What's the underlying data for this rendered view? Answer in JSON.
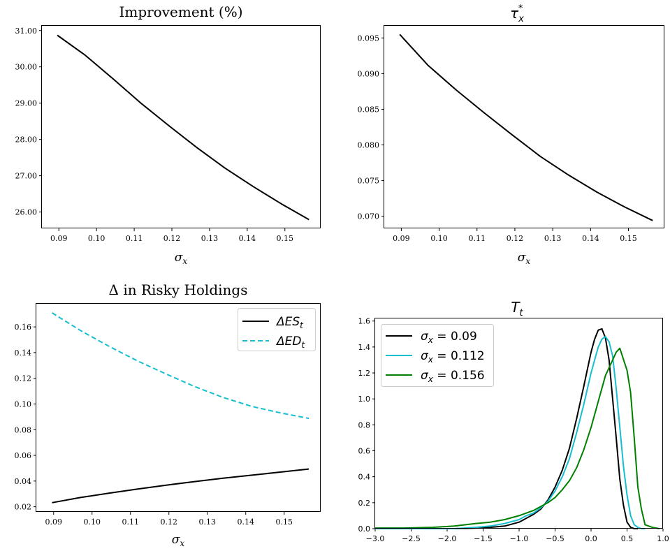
{
  "chart_data": [
    {
      "type": "line",
      "title": "Improvement (%)",
      "xlabel": "σ_x",
      "ylabel": "",
      "xlim": [
        0.0855,
        0.1595
      ],
      "ylim": [
        25.55,
        31.13
      ],
      "xticks": [
        0.09,
        0.1,
        0.11,
        0.12,
        0.13,
        0.14,
        0.15
      ],
      "xtick_labels": [
        "0.09",
        "0.10",
        "0.11",
        "0.12",
        "0.13",
        "0.14",
        "0.15"
      ],
      "yticks": [
        26,
        27,
        28,
        29,
        30,
        31
      ],
      "ytick_labels": [
        "26.00",
        "27.00",
        "28.00",
        "29.00",
        "30.00",
        "31.00"
      ],
      "grid": false,
      "series": [
        {
          "color": "#000000",
          "dash": "",
          "x": [
            0.0896,
            0.097,
            0.1045,
            0.1119,
            0.1193,
            0.1267,
            0.1341,
            0.1416,
            0.149,
            0.1564
          ],
          "y": [
            30.87,
            30.32,
            29.66,
            28.99,
            28.37,
            27.77,
            27.21,
            26.7,
            26.23,
            25.79
          ]
        }
      ]
    },
    {
      "type": "line",
      "title": "τ_x^*",
      "xlabel": "σ_x",
      "ylabel": "",
      "xlim": [
        0.0855,
        0.1595
      ],
      "ylim": [
        0.0683,
        0.0967
      ],
      "xticks": [
        0.09,
        0.1,
        0.11,
        0.12,
        0.13,
        0.14,
        0.15
      ],
      "xtick_labels": [
        "0.09",
        "0.10",
        "0.11",
        "0.12",
        "0.13",
        "0.14",
        "0.15"
      ],
      "yticks": [
        0.07,
        0.075,
        0.08,
        0.085,
        0.09,
        0.095
      ],
      "ytick_labels": [
        "0.070",
        "0.075",
        "0.080",
        "0.085",
        "0.090",
        "0.095"
      ],
      "grid": false,
      "series": [
        {
          "color": "#000000",
          "dash": "",
          "x": [
            0.0896,
            0.097,
            0.1045,
            0.1119,
            0.1193,
            0.1267,
            0.1341,
            0.1416,
            0.149,
            0.1564
          ],
          "y": [
            0.0955,
            0.0912,
            0.0877,
            0.0845,
            0.0814,
            0.0784,
            0.0758,
            0.0734,
            0.0713,
            0.0694
          ]
        }
      ]
    },
    {
      "type": "line",
      "title": "Δ in Risky Holdings",
      "xlabel": "σ_x",
      "ylabel": "",
      "xlim": [
        0.0855,
        0.1595
      ],
      "ylim": [
        0.016,
        0.178
      ],
      "xticks": [
        0.09,
        0.1,
        0.11,
        0.12,
        0.13,
        0.14,
        0.15
      ],
      "xtick_labels": [
        "0.09",
        "0.10",
        "0.11",
        "0.12",
        "0.13",
        "0.14",
        "0.15"
      ],
      "yticks": [
        0.02,
        0.04,
        0.06,
        0.08,
        0.1,
        0.12,
        0.14,
        0.16
      ],
      "ytick_labels": [
        "0.02",
        "0.04",
        "0.06",
        "0.08",
        "0.10",
        "0.12",
        "0.14",
        "0.16"
      ],
      "grid": false,
      "legend_position": "top-right",
      "series": [
        {
          "name": "ΔES_t",
          "color": "#000000",
          "dash": "",
          "x": [
            0.0896,
            0.097,
            0.1045,
            0.1119,
            0.1193,
            0.1267,
            0.1341,
            0.1416,
            0.149,
            0.1564
          ],
          "y": [
            0.0232,
            0.0272,
            0.0306,
            0.0338,
            0.0368,
            0.0396,
            0.0422,
            0.0446,
            0.047,
            0.0494
          ]
        },
        {
          "name": "ΔED_t",
          "color": "#17becf",
          "dash": "7,4",
          "x": [
            0.0896,
            0.097,
            0.1045,
            0.1119,
            0.1193,
            0.1267,
            0.1341,
            0.1416,
            0.149,
            0.1564
          ],
          "y": [
            0.171,
            0.1572,
            0.1448,
            0.1334,
            0.1233,
            0.1136,
            0.1051,
            0.0981,
            0.0931,
            0.0888
          ]
        }
      ]
    },
    {
      "type": "line",
      "title": "T_t",
      "xlabel": "",
      "ylabel": "",
      "xlim": [
        -3.0,
        1.0
      ],
      "ylim": [
        0.0,
        1.62
      ],
      "xticks": [
        -3.0,
        -2.5,
        -2.0,
        -1.5,
        -1.0,
        -0.5,
        0.0,
        0.5,
        1.0
      ],
      "xtick_labels": [
        "−3.0",
        "−2.5",
        "−2.0",
        "−1.5",
        "−1.0",
        "−0.5",
        "0.0",
        "0.5",
        "1.0"
      ],
      "yticks": [
        0.0,
        0.2,
        0.4,
        0.6,
        0.8,
        1.0,
        1.2,
        1.4,
        1.6
      ],
      "ytick_labels": [
        "0.0",
        "0.2",
        "0.4",
        "0.6",
        "0.8",
        "1.0",
        "1.2",
        "1.4",
        "1.6"
      ],
      "grid": false,
      "legend_position": "top-left",
      "series": [
        {
          "name": "σ_x = 0.09",
          "color": "#000000",
          "dash": "",
          "x": [
            -3.0,
            -2.6,
            -2.2,
            -1.9,
            -1.6,
            -1.4,
            -1.2,
            -1.0,
            -0.9,
            -0.8,
            -0.7,
            -0.6,
            -0.5,
            -0.4,
            -0.3,
            -0.2,
            -0.1,
            0.0,
            0.05,
            0.1,
            0.15,
            0.2,
            0.25,
            0.3,
            0.35,
            0.4,
            0.45,
            0.5,
            0.55,
            0.6,
            0.65
          ],
          "y": [
            0.0,
            0.0,
            0.0,
            0.0,
            0.005,
            0.01,
            0.02,
            0.05,
            0.08,
            0.11,
            0.15,
            0.22,
            0.32,
            0.45,
            0.62,
            0.85,
            1.1,
            1.36,
            1.46,
            1.53,
            1.54,
            1.47,
            1.3,
            1.0,
            0.7,
            0.38,
            0.18,
            0.05,
            0.01,
            0.0,
            0.0
          ]
        },
        {
          "name": "σ_x = 0.112",
          "color": "#17becf",
          "dash": "",
          "x": [
            -3.0,
            -2.6,
            -2.2,
            -1.9,
            -1.6,
            -1.4,
            -1.2,
            -1.0,
            -0.9,
            -0.8,
            -0.7,
            -0.6,
            -0.5,
            -0.4,
            -0.3,
            -0.2,
            -0.1,
            0.0,
            0.05,
            0.1,
            0.15,
            0.2,
            0.25,
            0.3,
            0.35,
            0.4,
            0.45,
            0.5,
            0.55,
            0.6,
            0.65,
            0.7,
            0.75
          ],
          "y": [
            0.0,
            0.0,
            0.0,
            0.0,
            0.01,
            0.02,
            0.04,
            0.07,
            0.1,
            0.12,
            0.16,
            0.21,
            0.29,
            0.4,
            0.54,
            0.74,
            0.96,
            1.2,
            1.3,
            1.4,
            1.46,
            1.48,
            1.44,
            1.33,
            1.08,
            0.78,
            0.48,
            0.26,
            0.1,
            0.03,
            0.01,
            0.0,
            0.0
          ]
        },
        {
          "name": "σ_x = 0.156",
          "color": "#008000",
          "dash": "",
          "x": [
            -3.0,
            -2.6,
            -2.2,
            -1.9,
            -1.6,
            -1.4,
            -1.2,
            -1.0,
            -0.9,
            -0.8,
            -0.7,
            -0.6,
            -0.5,
            -0.4,
            -0.3,
            -0.2,
            -0.1,
            0.0,
            0.1,
            0.2,
            0.3,
            0.35,
            0.4,
            0.5,
            0.55,
            0.6,
            0.65,
            0.7,
            0.75,
            0.85,
            0.95
          ],
          "y": [
            0.005,
            0.005,
            0.01,
            0.02,
            0.04,
            0.05,
            0.07,
            0.1,
            0.12,
            0.14,
            0.17,
            0.2,
            0.24,
            0.3,
            0.37,
            0.47,
            0.61,
            0.78,
            0.98,
            1.18,
            1.3,
            1.36,
            1.39,
            1.22,
            1.05,
            0.7,
            0.32,
            0.15,
            0.03,
            0.01,
            0.0
          ]
        }
      ]
    }
  ]
}
